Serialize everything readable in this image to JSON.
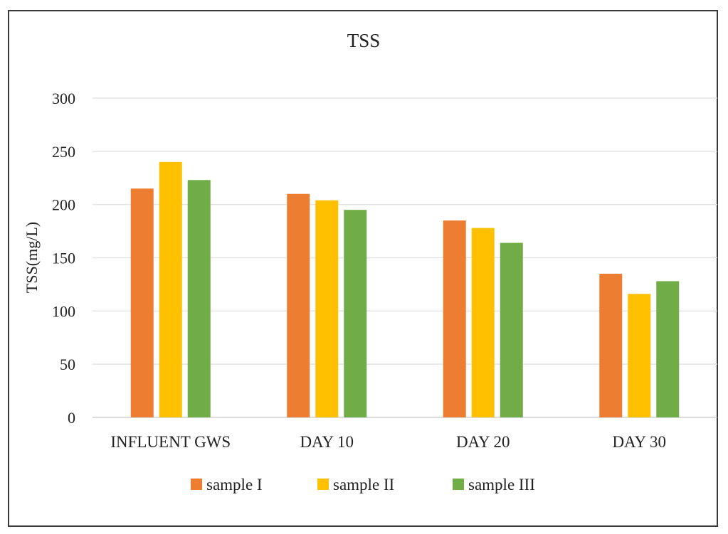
{
  "chart_data": {
    "type": "bar",
    "title": "TSS",
    "xlabel": "",
    "ylabel": "TSS(mg/L)",
    "ylim": [
      0,
      300
    ],
    "yticks": [
      0,
      50,
      100,
      150,
      200,
      250,
      300
    ],
    "grid": true,
    "legend_position": "bottom",
    "categories": [
      "INFLUENT GWS",
      "DAY 10",
      "DAY 20",
      "DAY 30"
    ],
    "series": [
      {
        "name": "sample I",
        "color": "#ed7d31",
        "values": [
          215,
          210,
          185,
          135
        ]
      },
      {
        "name": "sample II",
        "color": "#ffc000",
        "values": [
          240,
          204,
          178,
          116
        ]
      },
      {
        "name": "sample III",
        "color": "#70ad47",
        "values": [
          223,
          195,
          164,
          128
        ]
      }
    ]
  }
}
